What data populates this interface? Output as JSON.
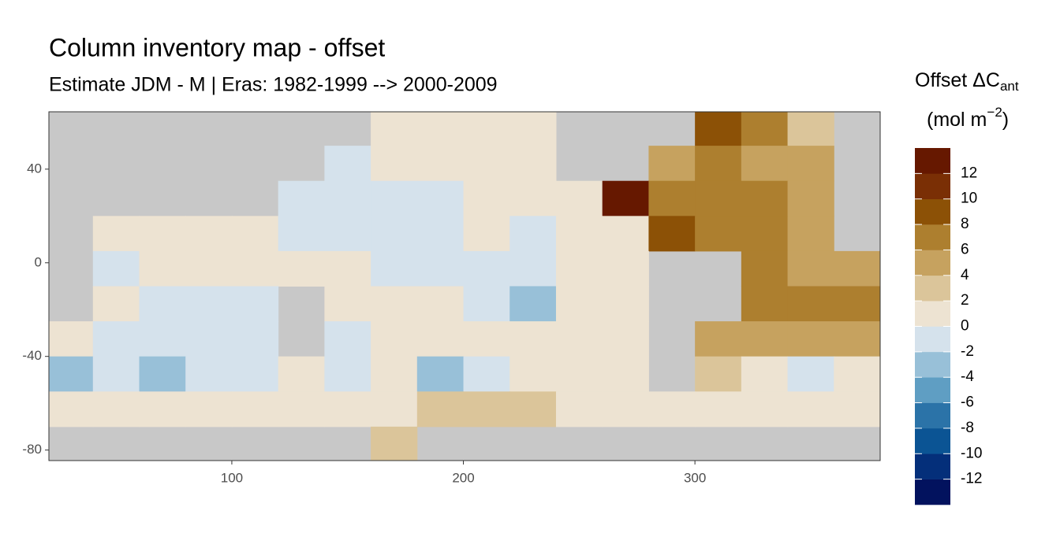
{
  "chart_data": {
    "type": "heatmap",
    "title": "Column inventory map - offset",
    "subtitle": "Estimate JDM - M | Eras: 1982-1999 --> 2000-2009",
    "legend_title": {
      "text": "Offset ΔC",
      "subscript": "ant",
      "unit": "(mol m",
      "unit_superscript": "−2",
      "unit_end": ")"
    },
    "xlim": [
      21,
      380
    ],
    "ylim": [
      -84.5,
      64.5
    ],
    "xticks": [
      100,
      200,
      300
    ],
    "yticks": [
      40,
      0,
      -40,
      -80
    ],
    "x": [
      30,
      50,
      70,
      90,
      110,
      130,
      150,
      170,
      190,
      210,
      230,
      250,
      270,
      290,
      310,
      330,
      350,
      370
    ],
    "y": [
      57.5,
      42.5,
      27.5,
      12.5,
      -2.5,
      -17.5,
      -32.5,
      -47.5,
      -62.5,
      -77.5
    ],
    "z": [
      [
        null,
        null,
        null,
        null,
        null,
        null,
        null,
        0,
        1,
        1,
        1,
        null,
        null,
        null,
        8,
        6,
        2,
        null
      ],
      [
        null,
        null,
        null,
        null,
        null,
        null,
        -2,
        1,
        0.5,
        1,
        1,
        null,
        null,
        5,
        6,
        4,
        4,
        null
      ],
      [
        null,
        null,
        null,
        null,
        null,
        -1,
        -1,
        -1,
        -1,
        1,
        1,
        1,
        12,
        6,
        6,
        6,
        4,
        null
      ],
      [
        null,
        1,
        1,
        1,
        1,
        -1,
        -1,
        -1,
        -1,
        1,
        -1,
        1,
        1,
        8,
        6,
        6,
        4,
        null
      ],
      [
        null,
        -1,
        1,
        1,
        1,
        1,
        1,
        -1,
        -1,
        -1,
        -1,
        1,
        1,
        null,
        null,
        6,
        5,
        4
      ],
      [
        null,
        1,
        -1,
        -1,
        -1,
        null,
        1,
        1,
        1,
        -1,
        -3,
        1,
        1,
        null,
        null,
        6,
        6,
        6
      ],
      [
        1,
        -1,
        -1,
        -1,
        -1,
        null,
        -1,
        1,
        1,
        1,
        1,
        1,
        1,
        null,
        5,
        5,
        4,
        4
      ],
      [
        -3,
        -1,
        -3,
        -1,
        -1,
        1,
        -1,
        1,
        -3,
        -1,
        1,
        1,
        1,
        null,
        3,
        1,
        -1,
        1
      ],
      [
        1,
        1,
        1,
        1,
        1,
        1,
        1,
        1,
        3,
        3,
        3,
        1,
        1,
        1,
        1,
        1,
        1,
        1
      ],
      [
        null,
        null,
        null,
        null,
        null,
        null,
        null,
        3,
        null,
        null,
        null,
        null,
        null,
        null,
        null,
        null,
        null,
        null
      ]
    ],
    "colorbar": {
      "breaks": [
        -14,
        -12,
        -10,
        -8,
        -6,
        -4,
        -2,
        0,
        2,
        4,
        6,
        8,
        10,
        12,
        14
      ],
      "colors": [
        "#02125e",
        "#042f7a",
        "#0b5494",
        "#2b73a8",
        "#5f9ec3",
        "#98c0d8",
        "#d5e2ec",
        "#ede3d2",
        "#dbc59a",
        "#c6a25f",
        "#ad7f2f",
        "#8c5106",
        "#7a2f05",
        "#661800"
      ],
      "ticks": [
        -12,
        -10,
        -8,
        -6,
        -4,
        -2,
        0,
        2,
        4,
        6,
        8,
        10,
        12
      ]
    },
    "land_color": "#c8c8c8"
  }
}
